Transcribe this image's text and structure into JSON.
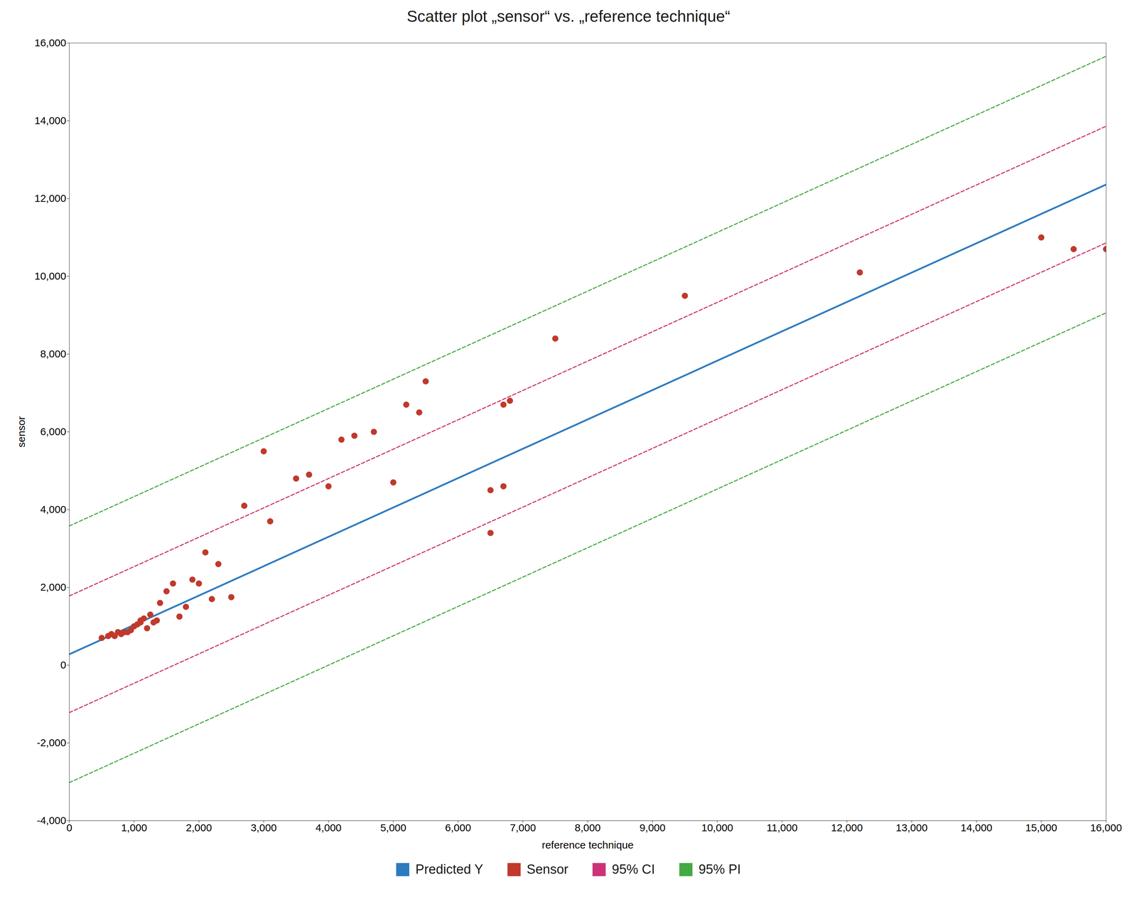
{
  "chart_data": {
    "type": "scatter",
    "title": "Scatter plot „sensor“ vs. „reference technique“",
    "xlabel": "reference technique",
    "ylabel": "sensor",
    "xlim": [
      0,
      16000
    ],
    "ylim": [
      -4000,
      16000
    ],
    "xticks": [
      0,
      {
        "value": 1000,
        "label": "1,000"
      },
      {
        "value": 2000,
        "label": "2,000"
      },
      {
        "value": 3000,
        "label": "3,000"
      },
      {
        "value": 4000,
        "label": "4,000"
      },
      {
        "value": 5000,
        "label": "5,000"
      },
      {
        "value": 6000,
        "label": "6,000"
      },
      {
        "value": 7000,
        "label": "7,000"
      },
      {
        "value": 8000,
        "label": "8,000"
      },
      {
        "value": 9000,
        "label": "9,000"
      },
      {
        "value": 10000,
        "label": "10,000"
      },
      {
        "value": 11000,
        "label": "11,000"
      },
      {
        "value": 12000,
        "label": "12,000"
      },
      {
        "value": 13000,
        "label": "13,000"
      },
      {
        "value": 14000,
        "label": "14,000"
      },
      {
        "value": 15000,
        "label": "15,000"
      },
      {
        "value": 16000,
        "label": "16,000"
      }
    ],
    "yticks": [
      {
        "value": -4000,
        "label": "-4,000"
      },
      {
        "value": -2000,
        "label": "-2,000"
      },
      0,
      {
        "value": 2000,
        "label": "2,000"
      },
      {
        "value": 4000,
        "label": "4,000"
      },
      {
        "value": 6000,
        "label": "6,000"
      },
      {
        "value": 8000,
        "label": "8,000"
      },
      {
        "value": 10000,
        "label": "10,000"
      },
      {
        "value": 12000,
        "label": "12,000"
      },
      {
        "value": 14000,
        "label": "14,000"
      },
      {
        "value": 16000,
        "label": "16,000"
      }
    ],
    "grid": false,
    "legend": "bottom",
    "series": [
      {
        "name": "Predicted Y",
        "type": "line",
        "line_style": "solid",
        "color": "#2e7bbf",
        "x": [
          0,
          16000
        ],
        "values": [
          280,
          12360
        ]
      },
      {
        "name": "Sensor",
        "type": "scatter",
        "marker": "circle",
        "color": "#c0392b",
        "x": [
          500,
          600,
          650,
          700,
          750,
          800,
          850,
          900,
          950,
          1000,
          1050,
          1100,
          1100,
          1150,
          1200,
          1250,
          1300,
          1350,
          1400,
          1500,
          1600,
          1700,
          1800,
          1900,
          2000,
          2100,
          2200,
          2300,
          2500,
          2700,
          3000,
          3100,
          3500,
          3700,
          4000,
          4200,
          4400,
          4700,
          5000,
          5200,
          5400,
          5500,
          6500,
          6500,
          6700,
          6700,
          6800,
          7500,
          9500,
          12200,
          15000,
          15500,
          16000
        ],
        "values": [
          700,
          750,
          800,
          750,
          850,
          800,
          850,
          850,
          900,
          1000,
          1050,
          1100,
          1150,
          1200,
          950,
          1300,
          1100,
          1150,
          1600,
          1900,
          2100,
          1250,
          1500,
          2200,
          2100,
          2900,
          1700,
          2600,
          1750,
          4100,
          5500,
          3700,
          4800,
          4900,
          4600,
          5800,
          5900,
          6000,
          4700,
          6700,
          6500,
          7300,
          3400,
          4500,
          4600,
          6700,
          6800,
          8400,
          9500,
          10100,
          11000,
          10700,
          10700
        ]
      },
      {
        "name": "95% CI",
        "type": "line",
        "line_style": "dashed",
        "color": "#cc3377",
        "x": [
          0,
          16000
        ],
        "values": [
          1780,
          13860
        ]
      },
      {
        "name": "95% CI",
        "type": "line",
        "line_style": "dashed",
        "color": "#cc3377",
        "x": [
          0,
          16000
        ],
        "values": [
          -1220,
          10860
        ]
      },
      {
        "name": "95% PI",
        "type": "line",
        "line_style": "dashed",
        "color": "#44aa44",
        "x": [
          0,
          16000
        ],
        "values": [
          3580,
          15660
        ]
      },
      {
        "name": "95% PI",
        "type": "line",
        "line_style": "dashed",
        "color": "#44aa44",
        "x": [
          0,
          16000
        ],
        "values": [
          -3020,
          9060
        ]
      }
    ]
  }
}
